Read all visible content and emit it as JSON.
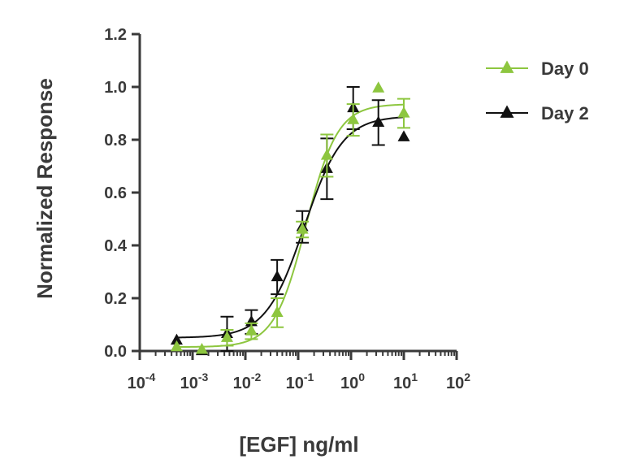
{
  "chart_data": {
    "type": "scatter",
    "xlabel": "[EGF] ng/ml",
    "ylabel": "Normalized Response",
    "xscale": "log",
    "xlim": [
      0.0001,
      100
    ],
    "ylim": [
      0,
      1.2
    ],
    "x_ticks": [
      {
        "value": 0.0001,
        "base": "10",
        "exp": "-4"
      },
      {
        "value": 0.001,
        "base": "10",
        "exp": "-3"
      },
      {
        "value": 0.01,
        "base": "10",
        "exp": "-2"
      },
      {
        "value": 0.1,
        "base": "10",
        "exp": "-1"
      },
      {
        "value": 1,
        "base": "10",
        "exp": "0"
      },
      {
        "value": 10,
        "base": "10",
        "exp": "1"
      },
      {
        "value": 100,
        "base": "10",
        "exp": "2"
      }
    ],
    "y_ticks": [
      "0.0",
      "0.2",
      "0.4",
      "0.6",
      "0.8",
      "1.0",
      "1.2"
    ],
    "grid": false,
    "legend_position": "top-right",
    "series": [
      {
        "name": "Day 0",
        "color": "#8dc63f",
        "marker": "triangle",
        "x": [
          0.0005,
          0.0015,
          0.0045,
          0.013,
          0.04,
          0.12,
          0.35,
          1.1,
          3.3,
          10
        ],
        "y": [
          0.015,
          0.005,
          0.05,
          0.075,
          0.145,
          0.46,
          0.74,
          0.875,
          0.995,
          0.9
        ],
        "err": [
          0.0,
          0.0,
          0.03,
          0.03,
          0.055,
          0.03,
          0.08,
          0.06,
          0.0,
          0.055
        ],
        "fit": {
          "bottom": 0.015,
          "top": 0.935,
          "ec50": 0.14,
          "hill": 1.45
        }
      },
      {
        "name": "Day 2",
        "color": "#111111",
        "marker": "triangle",
        "x": [
          0.0005,
          0.0015,
          0.0045,
          0.013,
          0.04,
          0.12,
          0.35,
          1.1,
          3.3,
          10
        ],
        "y": [
          0.04,
          0.0,
          0.065,
          0.11,
          0.28,
          0.47,
          0.69,
          0.92,
          0.865,
          0.81
        ],
        "err": [
          0.0,
          0.0,
          0.065,
          0.045,
          0.065,
          0.06,
          0.115,
          0.08,
          0.085,
          0.0
        ],
        "fit": {
          "bottom": 0.05,
          "top": 0.89,
          "ec50": 0.13,
          "hill": 1.2
        }
      }
    ]
  }
}
